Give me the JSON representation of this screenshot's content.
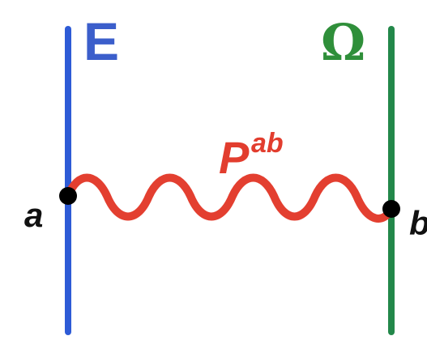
{
  "labels": {
    "left_space": "E",
    "right_space": "Ω",
    "propagator_base": "P",
    "propagator_superscript": "ab",
    "point_a": "a",
    "point_b": "b"
  },
  "colors": {
    "left_line": "#2e5bd6",
    "right_line": "#23884a",
    "wave": "#e33f30",
    "points": "#000000"
  },
  "wave": {
    "crests": 4,
    "troughs": 4
  }
}
